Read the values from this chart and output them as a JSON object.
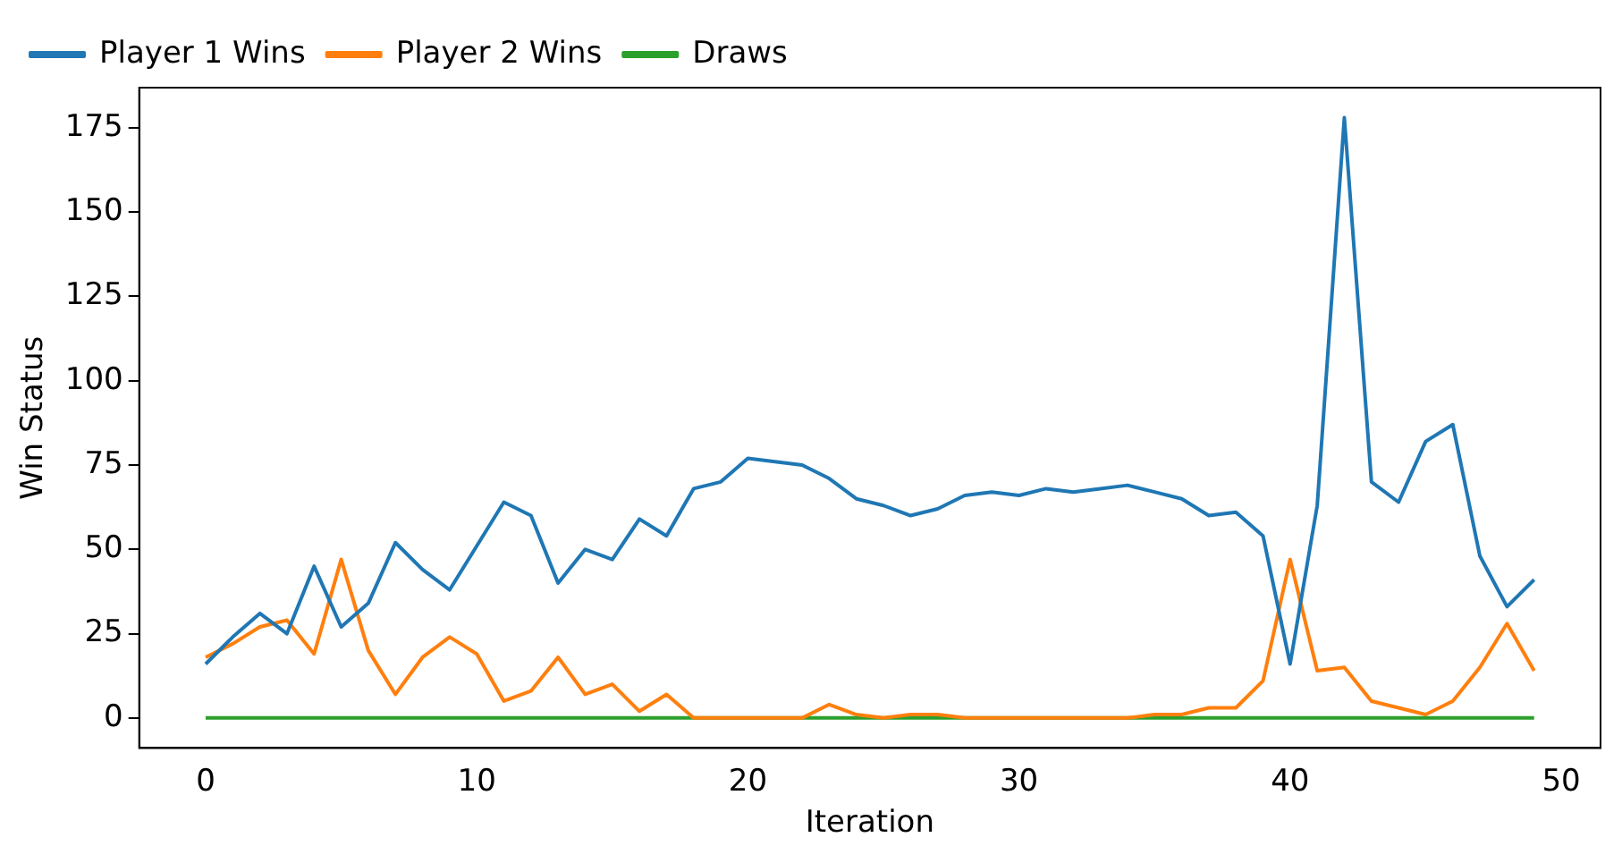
{
  "chart_data": {
    "type": "line",
    "xlabel": "Iteration",
    "ylabel": "Win Status",
    "x": [
      0,
      1,
      2,
      3,
      4,
      5,
      6,
      7,
      8,
      9,
      10,
      11,
      12,
      13,
      14,
      15,
      16,
      17,
      18,
      19,
      20,
      21,
      22,
      23,
      24,
      25,
      26,
      27,
      28,
      29,
      30,
      31,
      32,
      33,
      34,
      35,
      36,
      37,
      38,
      39,
      40,
      41,
      42,
      43,
      44,
      45,
      46,
      47,
      48,
      49
    ],
    "series": [
      {
        "name": "Player 1 Wins",
        "color": "#1f77b4",
        "values": [
          16,
          24,
          31,
          25,
          45,
          27,
          34,
          52,
          44,
          38,
          51,
          64,
          60,
          40,
          50,
          47,
          59,
          54,
          68,
          70,
          77,
          76,
          75,
          71,
          65,
          63,
          60,
          62,
          66,
          67,
          66,
          68,
          67,
          68,
          69,
          67,
          65,
          60,
          61,
          54,
          16,
          63,
          178,
          70,
          64,
          82,
          87,
          48,
          33,
          41
        ]
      },
      {
        "name": "Player 2 Wins",
        "color": "#ff7f0e",
        "values": [
          18,
          22,
          27,
          29,
          19,
          47,
          20,
          7,
          18,
          24,
          19,
          5,
          8,
          18,
          7,
          10,
          2,
          7,
          0,
          0,
          0,
          0,
          0,
          4,
          1,
          0,
          1,
          1,
          0,
          0,
          0,
          0,
          0,
          0,
          0,
          1,
          1,
          3,
          3,
          11,
          47,
          14,
          15,
          5,
          3,
          1,
          5,
          15,
          28,
          14
        ]
      },
      {
        "name": "Draws",
        "color": "#2ca02c",
        "values": [
          0,
          0,
          0,
          0,
          0,
          0,
          0,
          0,
          0,
          0,
          0,
          0,
          0,
          0,
          0,
          0,
          0,
          0,
          0,
          0,
          0,
          0,
          0,
          0,
          0,
          0,
          0,
          0,
          0,
          0,
          0,
          0,
          0,
          0,
          0,
          0,
          0,
          0,
          0,
          0,
          0,
          0,
          0,
          0,
          0,
          0,
          0,
          0,
          0,
          0
        ]
      }
    ],
    "xlim": [
      -2.45,
      51.45
    ],
    "xticks": [
      0,
      10,
      20,
      30,
      40,
      50
    ],
    "ylim": [
      -8.9,
      186.9
    ],
    "yticks": [
      0,
      25,
      50,
      75,
      100,
      125,
      150,
      175
    ],
    "grid": false,
    "legend": "top left",
    "marker": "none",
    "line_style": "solid"
  }
}
